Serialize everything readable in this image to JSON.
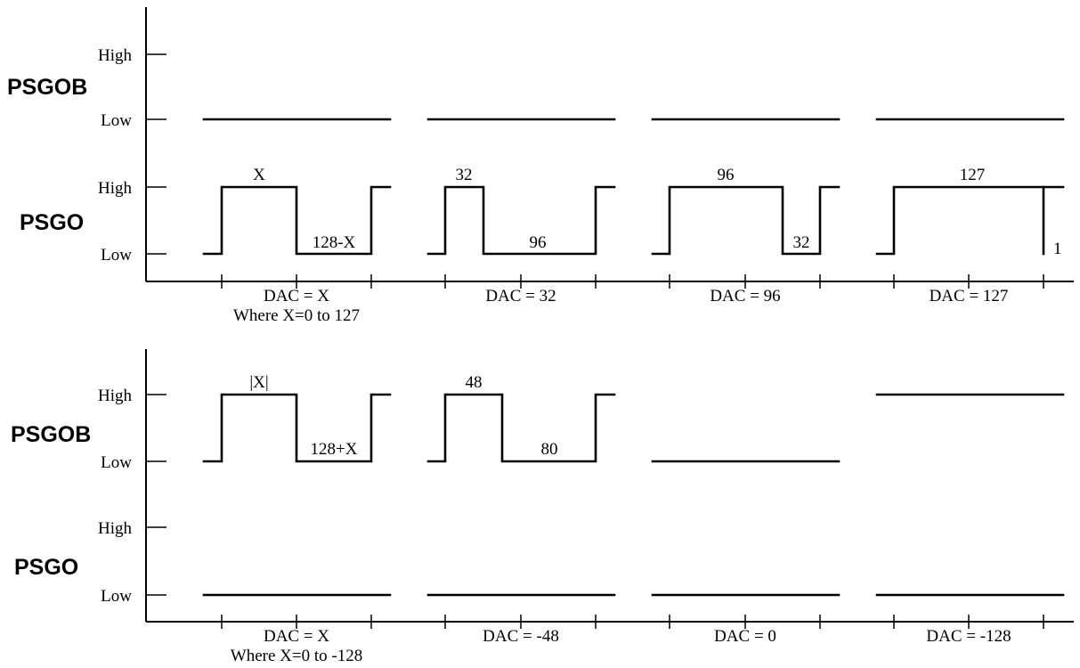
{
  "levels": {
    "high": "High",
    "low": "Low"
  },
  "top": {
    "signal_upper": "PSGOB",
    "signal_lower": "PSGO",
    "panels": [
      {
        "caption": "DAC = X",
        "caption2": "Where X=0 to 127",
        "high_label": "X",
        "low_label": "128-X",
        "high_count": "",
        "low_count": ""
      },
      {
        "caption": "DAC = 32",
        "caption2": "",
        "high_label": "32",
        "low_label": "96"
      },
      {
        "caption": "DAC = 96",
        "caption2": "",
        "high_label": "96",
        "low_label": "32"
      },
      {
        "caption": "DAC = 127",
        "caption2": "",
        "high_label": "127",
        "low_label": "1"
      }
    ]
  },
  "bottom": {
    "signal_upper": "PSGOB",
    "signal_lower": "PSGO",
    "panels": [
      {
        "caption": "DAC = X",
        "caption2": "Where X=0 to -128",
        "high_label": "|X|",
        "low_label": "128+X"
      },
      {
        "caption": "DAC = -48",
        "caption2": "",
        "high_label": "48",
        "low_label": "80"
      },
      {
        "caption": "DAC = 0",
        "caption2": "",
        "high_label": "",
        "low_label": ""
      },
      {
        "caption": "DAC = -128",
        "caption2": "",
        "high_label": "",
        "low_label": ""
      }
    ]
  }
}
